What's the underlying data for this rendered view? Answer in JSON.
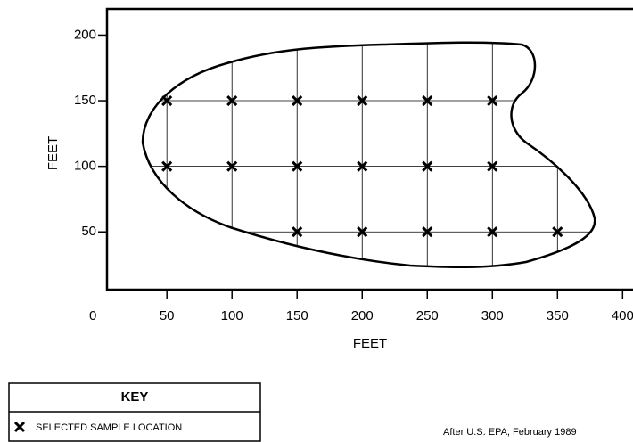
{
  "chart_data": {
    "type": "scatter",
    "xlabel": "FEET",
    "ylabel": "FEET",
    "xlim": [
      4,
      408
    ],
    "ylim": [
      6,
      220
    ],
    "xticks": [
      0,
      50,
      100,
      150,
      200,
      250,
      300,
      350,
      400
    ],
    "yticks": [
      50,
      100,
      150,
      200
    ],
    "grid": true,
    "legend_title": "KEY",
    "series": [
      {
        "name": "SELECTED SAMPLE LOCATION",
        "color": "#000000",
        "x": [
          50,
          100,
          150,
          200,
          250,
          300,
          50,
          100,
          150,
          200,
          250,
          300,
          150,
          200,
          250,
          300,
          350
        ],
        "values": [
          150,
          150,
          150,
          150,
          150,
          150,
          100,
          100,
          100,
          100,
          100,
          100,
          50,
          50,
          50,
          50,
          50
        ]
      }
    ],
    "annotation": "After U.S. EPA, February 1989"
  }
}
